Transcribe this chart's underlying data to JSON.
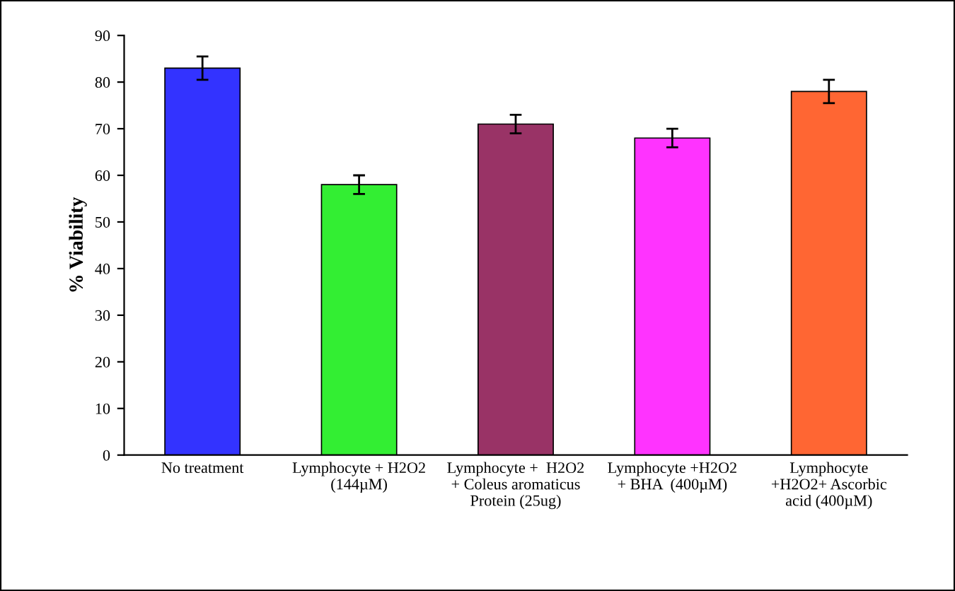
{
  "chart_data": {
    "type": "bar",
    "ylabel": "% Viability",
    "categories": [
      "No treatment",
      "Lymphocyte + H2O2\n(144µM)",
      "Lymphocyte +  H2O2\n+ Coleus aromaticus\nProtein (25ug)",
      "Lymphocyte +H2O2\n+ BHA  (400µM)",
      "Lymphocyte\n+H2O2+ Ascorbic\nacid (400µM)"
    ],
    "values": [
      83,
      58,
      71,
      68,
      78
    ],
    "errors": [
      2.5,
      2,
      2,
      2,
      2.5
    ],
    "colors": [
      "#3333ff",
      "#33ee33",
      "#993366",
      "#ff33ff",
      "#ff6633"
    ],
    "ylim": [
      0,
      90
    ],
    "yticks": [
      0,
      10,
      20,
      30,
      40,
      50,
      60,
      70,
      80,
      90
    ],
    "grid": false,
    "legend": false
  }
}
